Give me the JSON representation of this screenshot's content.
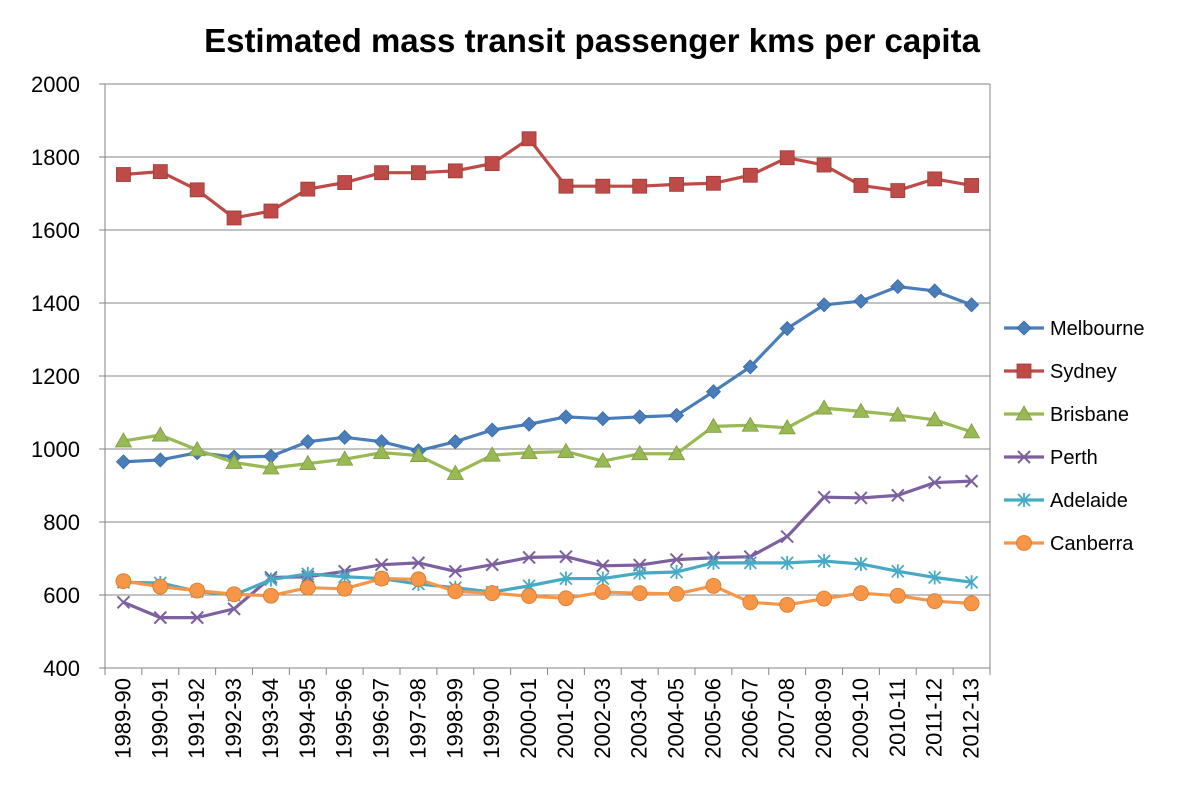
{
  "chart_data": {
    "type": "line",
    "title": "Estimated mass transit passenger kms per capita",
    "xlabel": "",
    "ylabel": "",
    "ylim": [
      400,
      2000
    ],
    "yticks": [
      400,
      600,
      800,
      1000,
      1200,
      1400,
      1600,
      1800,
      2000
    ],
    "grid": "horizontal",
    "legend_position": "right",
    "categories": [
      "1989-90",
      "1990-91",
      "1991-92",
      "1992-93",
      "1993-94",
      "1994-95",
      "1995-96",
      "1996-97",
      "1997-98",
      "1998-99",
      "1999-00",
      "2000-01",
      "2001-02",
      "2002-03",
      "2003-04",
      "2004-05",
      "2005-06",
      "2006-07",
      "2007-08",
      "2008-09",
      "2009-10",
      "2010-11",
      "2011-12",
      "2012-13"
    ],
    "series": [
      {
        "name": "Melbourne",
        "color": "#4A7EBB",
        "marker": "diamond",
        "values": [
          965,
          970,
          990,
          978,
          980,
          1020,
          1032,
          1020,
          995,
          1020,
          1052,
          1068,
          1088,
          1083,
          1088,
          1092,
          1157,
          1225,
          1330,
          1395,
          1405,
          1445,
          1433,
          1395
        ]
      },
      {
        "name": "Sydney",
        "color": "#BE4B48",
        "marker": "square",
        "values": [
          1752,
          1760,
          1710,
          1633,
          1652,
          1712,
          1730,
          1757,
          1757,
          1762,
          1782,
          1850,
          1720,
          1720,
          1720,
          1725,
          1728,
          1750,
          1798,
          1778,
          1722,
          1708,
          1740,
          1722
        ]
      },
      {
        "name": "Brisbane",
        "color": "#98B954",
        "marker": "triangle",
        "values": [
          1022,
          1038,
          998,
          963,
          948,
          960,
          972,
          990,
          982,
          933,
          983,
          990,
          993,
          967,
          987,
          987,
          1062,
          1065,
          1058,
          1112,
          1103,
          1093,
          1080,
          1047
        ]
      },
      {
        "name": "Perth",
        "color": "#7D60A0",
        "marker": "x",
        "values": [
          580,
          538,
          538,
          562,
          648,
          650,
          665,
          683,
          688,
          665,
          683,
          703,
          705,
          680,
          682,
          697,
          702,
          705,
          760,
          868,
          866,
          873,
          908,
          912
        ]
      },
      {
        "name": "Adelaide",
        "color": "#46AAC5",
        "marker": "star",
        "values": [
          635,
          633,
          610,
          600,
          642,
          658,
          650,
          645,
          630,
          620,
          608,
          625,
          645,
          645,
          660,
          663,
          688,
          688,
          688,
          693,
          685,
          665,
          648,
          635
        ]
      },
      {
        "name": "Canberra",
        "color": "#F79646",
        "marker": "circle",
        "values": [
          638,
          623,
          612,
          602,
          598,
          620,
          617,
          645,
          643,
          610,
          605,
          597,
          591,
          608,
          605,
          603,
          625,
          580,
          573,
          590,
          605,
          598,
          583,
          577
        ]
      }
    ]
  }
}
